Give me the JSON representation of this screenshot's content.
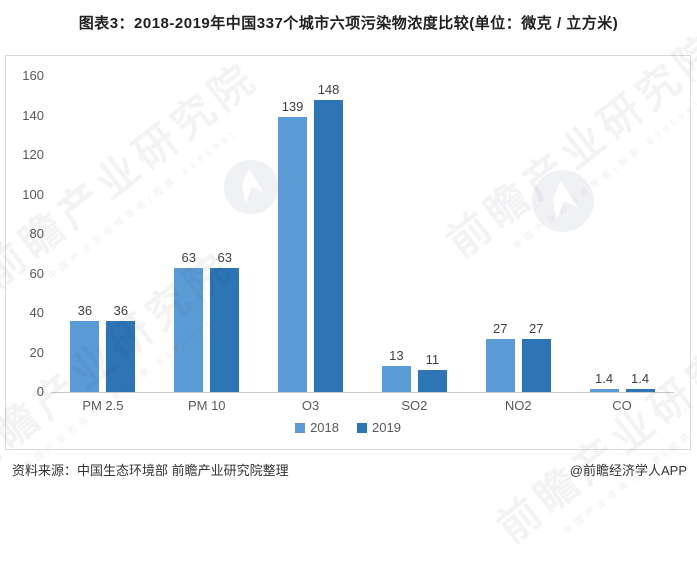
{
  "title": "图表3：2018-2019年中国337个城市六项污染物浓度比较(单位：微克 / 立方米)",
  "chart_data": {
    "type": "bar",
    "title": "图表3：2018-2019年中国337个城市六项污染物浓度比较(单位：微克 / 立方米)",
    "categories": [
      "PM 2.5",
      "PM 10",
      "O3",
      "SO2",
      "NO2",
      "CO"
    ],
    "series": [
      {
        "name": "2018",
        "color": "#5B9BD5",
        "values": [
          36,
          63,
          139,
          13,
          27,
          1.4
        ]
      },
      {
        "name": "2019",
        "color": "#2E75B6",
        "values": [
          36,
          63,
          148,
          11,
          27,
          1.4
        ]
      }
    ],
    "xlabel": "",
    "ylabel": "",
    "ylim": [
      0,
      160
    ],
    "yticks": [
      0,
      20,
      40,
      60,
      80,
      100,
      120,
      140,
      160
    ],
    "grid": false,
    "legend_position": "bottom-center",
    "unit": "微克/立方米"
  },
  "footer": {
    "source": "资料来源：中国生态环境部 前瞻产业研究院整理",
    "brand": "@前瞻经济学人APP"
  },
  "watermark": {
    "text": "前瞻产业研究院",
    "subtext": "中国产业咨询领导者(股票:839599)"
  },
  "colors": {
    "series_2018": "#5B9BD5",
    "series_2019": "#2E75B6",
    "axis_text": "#595959",
    "border": "#d9d9d9"
  }
}
